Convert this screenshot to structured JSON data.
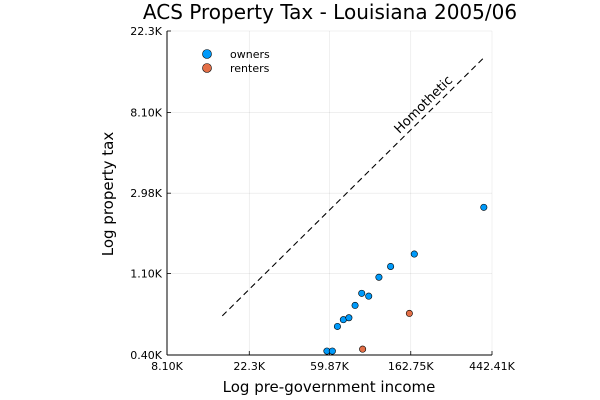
{
  "chart_data": {
    "type": "scatter",
    "title": "ACS Property Tax - Louisiana 2005/06",
    "xlabel": "Log pre-government income",
    "ylabel": "Log property tax",
    "x_scale": "log",
    "y_scale": "log",
    "x_ticks": [
      {
        "value": 8100,
        "label": "8.10K"
      },
      {
        "value": 22300,
        "label": "22.3K"
      },
      {
        "value": 59870,
        "label": "59.87K"
      },
      {
        "value": 162750,
        "label": "162.75K"
      },
      {
        "value": 442410,
        "label": "442.41K"
      }
    ],
    "y_ticks": [
      {
        "value": 400,
        "label": "0.40K"
      },
      {
        "value": 1100,
        "label": "1.10K"
      },
      {
        "value": 2980,
        "label": "2.98K"
      },
      {
        "value": 8100,
        "label": "8.10K"
      },
      {
        "value": 22300,
        "label": "22.3K"
      }
    ],
    "xlim": [
      8100,
      442410
    ],
    "ylim": [
      400,
      22300
    ],
    "grid": true,
    "legend_position": "top-left",
    "series": [
      {
        "name": "owners",
        "color": "#009AFA",
        "points": [
          {
            "x": 58000,
            "y": 420
          },
          {
            "x": 62000,
            "y": 420
          },
          {
            "x": 66000,
            "y": 570
          },
          {
            "x": 71000,
            "y": 620
          },
          {
            "x": 76000,
            "y": 635
          },
          {
            "x": 82000,
            "y": 740
          },
          {
            "x": 89000,
            "y": 860
          },
          {
            "x": 97000,
            "y": 830
          },
          {
            "x": 110000,
            "y": 1050
          },
          {
            "x": 127000,
            "y": 1200
          },
          {
            "x": 170000,
            "y": 1400
          },
          {
            "x": 400000,
            "y": 2500
          }
        ]
      },
      {
        "name": "renters",
        "color": "#E36F47",
        "points": [
          {
            "x": 90000,
            "y": 430
          },
          {
            "x": 160000,
            "y": 670
          }
        ]
      }
    ],
    "reference_line": {
      "label": "Homothetic",
      "style": "dashed",
      "x": [
        16000,
        400000
      ],
      "y": [
        650,
        16000
      ]
    }
  }
}
